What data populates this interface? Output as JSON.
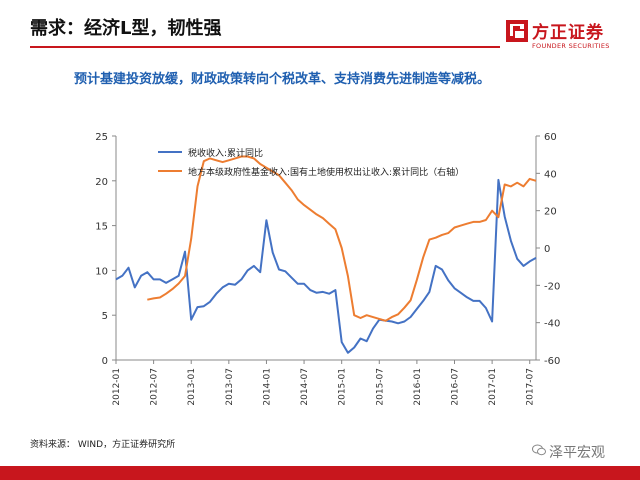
{
  "header": {
    "title": "需求：经济L型，韧性强",
    "subtitle": "预计基建投资放缓，财政政策转向个税改革、支持消费先进制造等减税。"
  },
  "logo": {
    "name_cn": "方正证券",
    "name_en": "FOUNDER SECURITIES",
    "color": "#c8161d"
  },
  "source": "资料来源： WIND，方正证券研究所",
  "watermark": "泽平宏观",
  "chart_data": {
    "type": "line",
    "x": [
      "2012-01",
      "2012-02",
      "2012-03",
      "2012-04",
      "2012-05",
      "2012-06",
      "2012-07",
      "2012-08",
      "2012-09",
      "2012-10",
      "2012-11",
      "2012-12",
      "2013-01",
      "2013-02",
      "2013-03",
      "2013-04",
      "2013-05",
      "2013-06",
      "2013-07",
      "2013-08",
      "2013-09",
      "2013-10",
      "2013-11",
      "2013-12",
      "2014-01",
      "2014-02",
      "2014-03",
      "2014-04",
      "2014-05",
      "2014-06",
      "2014-07",
      "2014-08",
      "2014-09",
      "2014-10",
      "2014-11",
      "2014-12",
      "2015-01",
      "2015-02",
      "2015-03",
      "2015-04",
      "2015-05",
      "2015-06",
      "2015-07",
      "2015-08",
      "2015-09",
      "2015-10",
      "2015-11",
      "2015-12",
      "2016-01",
      "2016-02",
      "2016-03",
      "2016-04",
      "2016-05",
      "2016-06",
      "2016-07",
      "2016-08",
      "2016-09",
      "2016-10",
      "2016-11",
      "2016-12",
      "2017-01",
      "2017-02",
      "2017-03",
      "2017-04",
      "2017-05",
      "2017-06",
      "2017-07",
      "2017-08"
    ],
    "x_tick_labels": [
      "2012-01",
      "2012-07",
      "2013-01",
      "2013-07",
      "2014-01",
      "2014-07",
      "2015-01",
      "2015-07",
      "2016-01",
      "2016-07",
      "2017-01",
      "2017-07"
    ],
    "y_left": {
      "ticks": [
        0,
        5,
        10,
        15,
        20,
        25
      ],
      "ylim": [
        0,
        25
      ]
    },
    "y_right": {
      "ticks": [
        -60,
        -40,
        -20,
        0,
        20,
        40,
        60
      ],
      "ylim": [
        -60,
        60
      ]
    },
    "series": [
      {
        "name": "税收收入:累计同比",
        "axis": "left",
        "color": "#4472c4",
        "values": [
          9.0,
          9.4,
          10.3,
          8.1,
          9.4,
          9.8,
          9.0,
          9.0,
          8.6,
          9.0,
          9.4,
          12.1,
          4.5,
          5.9,
          6.0,
          6.5,
          7.4,
          8.1,
          8.5,
          8.4,
          9.0,
          10.0,
          10.5,
          9.8,
          15.6,
          12.0,
          10.1,
          9.9,
          9.2,
          8.5,
          8.5,
          7.8,
          7.5,
          7.6,
          7.4,
          7.8,
          2.0,
          0.8,
          1.4,
          2.4,
          2.1,
          3.5,
          4.5,
          4.4,
          4.3,
          4.1,
          4.3,
          4.8,
          5.7,
          6.6,
          7.6,
          10.5,
          10.1,
          8.9,
          8.0,
          7.5,
          7.0,
          6.6,
          6.6,
          5.8,
          4.3,
          20.1,
          16.0,
          13.3,
          11.3,
          10.5,
          11.0,
          11.4
        ]
      },
      {
        "name": "地方本级政府性基金收入:国有土地使用权出让收入:累计同比（右轴）",
        "axis": "right",
        "color": "#ed7d31",
        "values": [
          null,
          null,
          null,
          null,
          null,
          -27.7,
          -27.0,
          -26.5,
          -24.5,
          -22.0,
          -19.0,
          -15.0,
          5.0,
          33.0,
          46.5,
          48.0,
          47.0,
          46.0,
          47.0,
          48.0,
          49.0,
          49.0,
          48.0,
          45.0,
          43.0,
          41.0,
          39.0,
          35.0,
          31.0,
          26.0,
          23.0,
          20.5,
          18.0,
          16.0,
          13.0,
          10.0,
          0.0,
          -15.0,
          -36.0,
          -37.5,
          -36.0,
          -37.0,
          -38.0,
          -39.0,
          -37.0,
          -35.5,
          -32.0,
          -28.0,
          -17.0,
          -5.0,
          4.5,
          5.5,
          7.0,
          8.0,
          11.0,
          12.0,
          13.0,
          14.0,
          14.0,
          15.0,
          20.0,
          16.5,
          34.0,
          33.0,
          35.0,
          33.0,
          37.0,
          36.0
        ]
      }
    ],
    "legend_placement": "top-left",
    "grid": false
  }
}
